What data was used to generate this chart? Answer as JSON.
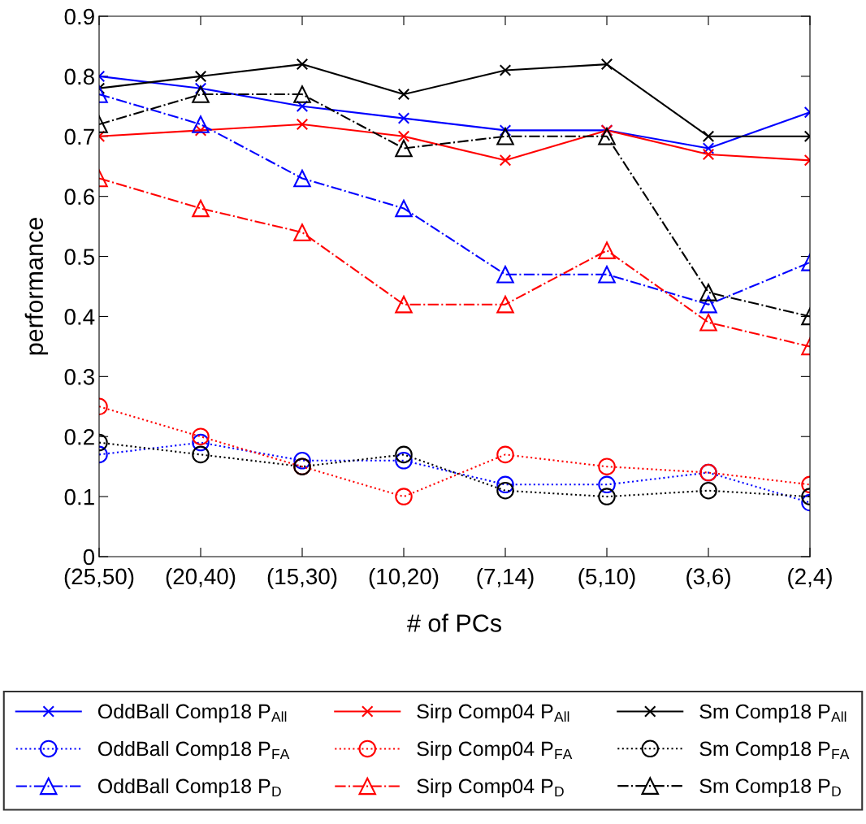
{
  "chart_data": {
    "type": "line",
    "xlabel": "# of PCs",
    "ylabel": "performance",
    "categories": [
      "(25,50)",
      "(20,40)",
      "(15,30)",
      "(10,20)",
      "(7,14)",
      "(5,10)",
      "(3,6)",
      "(2,4)"
    ],
    "ylim": [
      0,
      0.9
    ],
    "yticks": [
      0,
      0.1,
      0.2,
      0.3,
      0.4,
      0.5,
      0.6,
      0.7,
      0.8,
      0.9
    ],
    "grid": false,
    "legend": "bottom",
    "series": [
      {
        "name": "OddBall Comp18 P$_{All}$",
        "color": "#0000ff",
        "marker": "cross",
        "line_style": "solid",
        "values": [
          0.8,
          0.78,
          0.75,
          0.73,
          0.71,
          0.71,
          0.68,
          0.74
        ]
      },
      {
        "name": "Sirp Comp04 P$_{All}$",
        "color": "#ff0000",
        "marker": "cross",
        "line_style": "solid",
        "values": [
          0.7,
          0.71,
          0.72,
          0.7,
          0.66,
          0.71,
          0.67,
          0.66
        ]
      },
      {
        "name": "Sm Comp18 P$_{All}$",
        "color": "#000000",
        "marker": "cross",
        "line_style": "solid",
        "values": [
          0.78,
          0.8,
          0.82,
          0.77,
          0.81,
          0.82,
          0.7,
          0.7
        ]
      },
      {
        "name": "OddBall Comp18 P$_{FA}$",
        "color": "#0000ff",
        "marker": "circle",
        "line_style": "dotted",
        "values": [
          0.17,
          0.19,
          0.16,
          0.16,
          0.12,
          0.12,
          0.14,
          0.09
        ]
      },
      {
        "name": "Sirp Comp04 P$_{FA}$",
        "color": "#ff0000",
        "marker": "circle",
        "line_style": "dotted",
        "values": [
          0.25,
          0.2,
          0.15,
          0.1,
          0.17,
          0.15,
          0.14,
          0.12
        ]
      },
      {
        "name": "Sm Comp18 P$_{FA}$",
        "color": "#000000",
        "marker": "circle",
        "line_style": "dotted",
        "values": [
          0.19,
          0.17,
          0.15,
          0.17,
          0.11,
          0.1,
          0.11,
          0.1
        ]
      },
      {
        "name": "OddBall Comp18 P$_{D}$",
        "color": "#0000ff",
        "marker": "triangle",
        "line_style": "dashdot",
        "values": [
          0.77,
          0.72,
          0.63,
          0.58,
          0.47,
          0.47,
          0.42,
          0.49
        ]
      },
      {
        "name": "Sirp Comp04 P$_{D}$",
        "color": "#ff0000",
        "marker": "triangle",
        "line_style": "dashdot",
        "values": [
          0.63,
          0.58,
          0.54,
          0.42,
          0.42,
          0.51,
          0.39,
          0.35
        ]
      },
      {
        "name": "Sm Comp18 P$_{D}$",
        "color": "#000000",
        "marker": "triangle",
        "line_style": "dashdot",
        "values": [
          0.72,
          0.77,
          0.77,
          0.68,
          0.7,
          0.7,
          0.44,
          0.4
        ]
      }
    ]
  }
}
